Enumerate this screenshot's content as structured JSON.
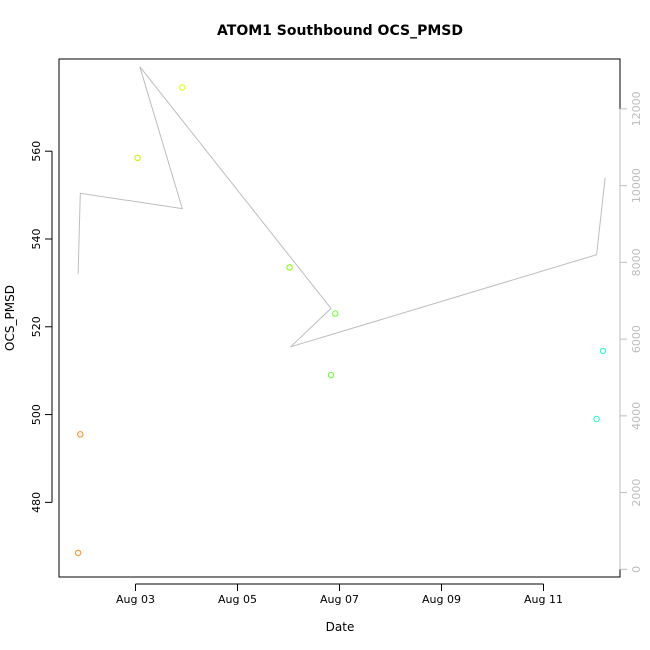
{
  "chart_data": {
    "type": "scatter",
    "title": "ATOM1 Southbound OCS_PMSD",
    "xlabel": "Date",
    "ylabel": "OCS_PMSD",
    "xlim": [
      "2023-08-01T12:00",
      "2023-08-12T12:00"
    ],
    "x_ticks": [
      {
        "value": "2023-08-03",
        "label": "Aug 03"
      },
      {
        "value": "2023-08-05",
        "label": "Aug 05"
      },
      {
        "value": "2023-08-07",
        "label": "Aug 07"
      },
      {
        "value": "2023-08-09",
        "label": "Aug 09"
      },
      {
        "value": "2023-08-11",
        "label": "Aug 11"
      }
    ],
    "ylim": [
      463,
      581
    ],
    "y_ticks": [
      480,
      500,
      520,
      540,
      560
    ],
    "y2lim": [
      -200,
      13300
    ],
    "y2_ticks": [
      0,
      2000,
      4000,
      6000,
      8000,
      10000,
      12000
    ],
    "points": [
      {
        "x": "2023-08-01T21:00",
        "y": 468.5,
        "color": "#ff8c1a"
      },
      {
        "x": "2023-08-01T22:00",
        "y": 495.5,
        "color": "#ff8c1a"
      },
      {
        "x": "2023-08-03T01:00",
        "y": 558.5,
        "color": "#c8f000"
      },
      {
        "x": "2023-08-03T22:00",
        "y": 574.5,
        "color": "#dcff00"
      },
      {
        "x": "2023-08-06T00:30",
        "y": 533.5,
        "color": "#7fff00"
      },
      {
        "x": "2023-08-06T20:00",
        "y": 509,
        "color": "#66ff33"
      },
      {
        "x": "2023-08-06T22:00",
        "y": 523,
        "color": "#66ff33"
      },
      {
        "x": "2023-08-12T01:00",
        "y": 499,
        "color": "#1affd0"
      },
      {
        "x": "2023-08-12T04:00",
        "y": 514.5,
        "color": "#1affd0"
      }
    ],
    "line_series": {
      "axis": "right",
      "color": "#bdbdbd",
      "points": [
        {
          "x": "2023-08-01T21:00",
          "y": 7700
        },
        {
          "x": "2023-08-01T22:00",
          "y": 9800
        },
        {
          "x": "2023-08-03T22:00",
          "y": 9400
        },
        {
          "x": "2023-08-03T02:00",
          "y": 13100
        },
        {
          "x": "2023-08-06T20:00",
          "y": 6800
        },
        {
          "x": "2023-08-06T01:00",
          "y": 5800
        },
        {
          "x": "2023-08-12T01:00",
          "y": 8200
        },
        {
          "x": "2023-08-12T05:00",
          "y": 10200
        }
      ]
    }
  }
}
